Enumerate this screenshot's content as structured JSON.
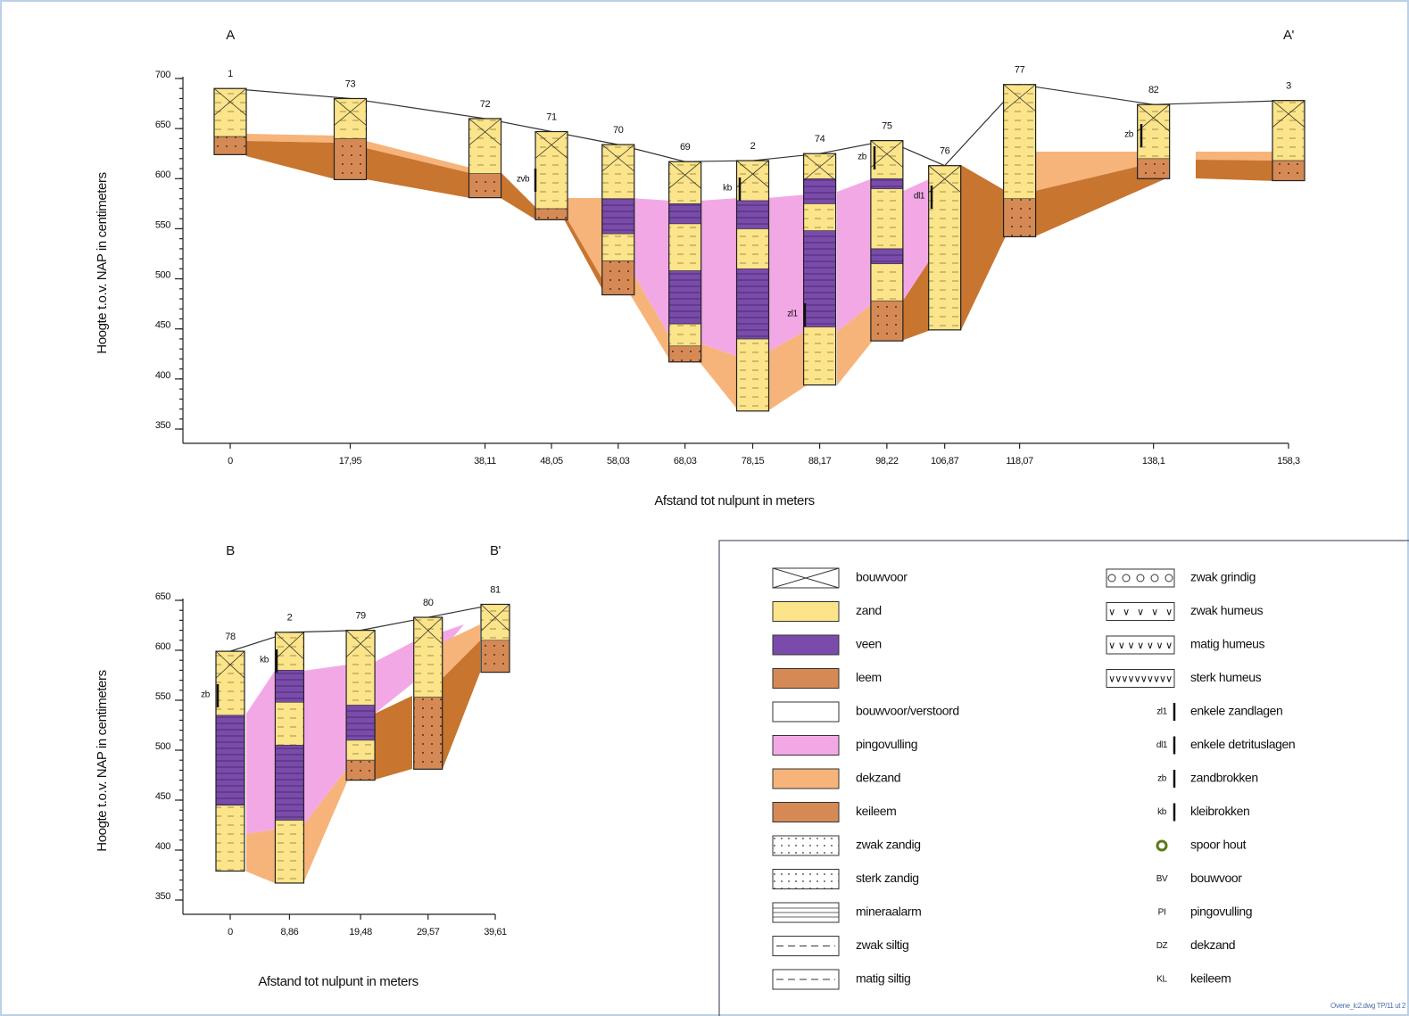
{
  "sections": [
    {
      "title": "A",
      "title_end": "A'",
      "y_label": "Hoogte t.o.v. NAP in centimeters",
      "x_label": "Afstand tot nulpunt in meters",
      "ylim": [
        350,
        700
      ],
      "yticks": [
        350,
        400,
        450,
        500,
        550,
        600,
        650,
        700
      ],
      "xlim": [
        0,
        158.3
      ],
      "xticks": [
        0,
        {
          "value": 17.95,
          "label": "17,95"
        },
        {
          "value": 38.11,
          "label": "38,11"
        },
        {
          "value": 48.05,
          "label": "48,05"
        },
        {
          "value": 58.03,
          "label": "58,03"
        },
        {
          "value": 68.03,
          "label": "68,03"
        },
        {
          "value": 78.15,
          "label": "78,15"
        },
        {
          "value": 88.17,
          "label": "88,17"
        },
        {
          "value": 98.22,
          "label": "98,22"
        },
        {
          "value": 106.87,
          "label": "106,87"
        },
        {
          "value": 118.07,
          "label": "118,07"
        },
        {
          "value": 138.1,
          "label": "138,1"
        },
        {
          "value": 158.3,
          "label": "158,3"
        }
      ],
      "boreholes": [
        {
          "id": "1",
          "top": 690,
          "bottom": 624,
          "layers": {
            "zand": [
              [
                690,
                642
              ]
            ],
            "leem": [
              [
                642,
                624
              ]
            ]
          }
        },
        {
          "id": "73",
          "top": 680,
          "bottom": 599,
          "layers": {
            "zand": [
              [
                680,
                640
              ]
            ],
            "leem": [
              [
                640,
                599
              ]
            ]
          }
        },
        {
          "id": "72",
          "top": 660,
          "bottom": 581,
          "layers": {
            "zand": [
              [
                660,
                605
              ]
            ],
            "leem": [
              [
                605,
                581
              ]
            ]
          }
        },
        {
          "id": "71",
          "top": 647,
          "bottom": 559,
          "layers": {
            "zand": [
              [
                647,
                570
              ]
            ],
            "leem": [
              [
                570,
                559
              ]
            ]
          }
        },
        {
          "id": "70",
          "top": 634,
          "bottom": 484,
          "layers": {
            "zand": [
              [
                634,
                580
              ],
              [
                545,
                518
              ]
            ],
            "veen": [
              [
                580,
                545
              ]
            ],
            "leem": [
              [
                518,
                484
              ]
            ]
          }
        },
        {
          "id": "69",
          "top": 617,
          "bottom": 417,
          "layers": {
            "zand": [
              [
                617,
                575
              ],
              [
                555,
                508
              ],
              [
                455,
                433
              ]
            ],
            "veen": [
              [
                575,
                555
              ],
              [
                508,
                455
              ]
            ],
            "leem": [
              [
                433,
                417
              ]
            ]
          }
        },
        {
          "id": "2",
          "top": 618,
          "bottom": 368,
          "layers": {
            "zand": [
              [
                618,
                578
              ],
              [
                550,
                510
              ],
              [
                440,
                368
              ]
            ],
            "veen": [
              [
                578,
                550
              ],
              [
                510,
                440
              ]
            ]
          }
        },
        {
          "id": "74",
          "top": 625,
          "bottom": 394,
          "layers": {
            "zand": [
              [
                625,
                600
              ],
              [
                575,
                548
              ],
              [
                452,
                394
              ]
            ],
            "veen": [
              [
                600,
                575
              ],
              [
                548,
                452
              ]
            ]
          }
        },
        {
          "id": "75",
          "top": 638,
          "bottom": 438,
          "layers": {
            "zand": [
              [
                638,
                600
              ],
              [
                590,
                530
              ],
              [
                515,
                478
              ]
            ],
            "veen": [
              [
                600,
                590
              ],
              [
                530,
                515
              ]
            ],
            "leem": [
              [
                478,
                438
              ]
            ]
          }
        },
        {
          "id": "76",
          "top": 613,
          "bottom": 449,
          "layers": {
            "zand": [
              [
                613,
                449
              ]
            ]
          }
        },
        {
          "id": "77",
          "top": 694,
          "bottom": 542,
          "layers": {
            "zand": [
              [
                694,
                580
              ]
            ],
            "leem": [
              [
                580,
                542
              ]
            ]
          }
        },
        {
          "id": "82",
          "top": 674,
          "bottom": 600,
          "layers": {
            "zand": [
              [
                674,
                620
              ]
            ],
            "leem": [
              [
                620,
                600
              ]
            ]
          }
        },
        {
          "id": "3",
          "top": 678,
          "bottom": 598,
          "layers": {
            "zand": [
              [
                678,
                618
              ]
            ],
            "leem": [
              [
                618,
                598
              ]
            ]
          }
        }
      ],
      "annotations": [
        "zvb",
        "kb",
        "zb",
        "dl1",
        "zl1",
        "zb"
      ]
    },
    {
      "title": "B",
      "title_end": "B'",
      "y_label": "Hoogte t.o.v. NAP in centimeters",
      "x_label": "Afstand tot nulpunt in meters",
      "ylim": [
        350,
        650
      ],
      "yticks": [
        350,
        400,
        450,
        500,
        550,
        600,
        650
      ],
      "xlim": [
        0,
        39.61
      ],
      "xticks": [
        0,
        {
          "value": 8.86,
          "label": "8,86"
        },
        {
          "value": 19.48,
          "label": "19,48"
        },
        {
          "value": 29.57,
          "label": "29,57"
        },
        {
          "value": 39.61,
          "label": "39,61"
        }
      ],
      "boreholes": [
        {
          "id": "78",
          "top": 599,
          "bottom": 379,
          "layers": {
            "zand": [
              [
                599,
                520
              ],
              [
                445,
                379
              ]
            ],
            "veen": [
              [
                535,
                445
              ]
            ]
          }
        },
        {
          "id": "2",
          "top": 618,
          "bottom": 367,
          "layers": {
            "zand": [
              [
                618,
                580
              ],
              [
                548,
                505
              ],
              [
                430,
                367
              ]
            ],
            "veen": [
              [
                580,
                548
              ],
              [
                505,
                430
              ]
            ]
          }
        },
        {
          "id": "79",
          "top": 620,
          "bottom": 470,
          "layers": {
            "zand": [
              [
                620,
                545
              ],
              [
                510,
                490
              ]
            ],
            "veen": [
              [
                545,
                510
              ]
            ],
            "leem": [
              [
                490,
                470
              ]
            ]
          }
        },
        {
          "id": "80",
          "top": 633,
          "bottom": 481,
          "layers": {
            "zand": [
              [
                633,
                553
              ]
            ],
            "leem": [
              [
                553,
                481
              ]
            ]
          }
        },
        {
          "id": "81",
          "top": 646,
          "bottom": 578,
          "layers": {
            "zand": [
              [
                646,
                610
              ]
            ],
            "leem": [
              [
                610,
                578
              ]
            ]
          }
        }
      ],
      "annotations": [
        "zb",
        "kb"
      ]
    }
  ],
  "legend": {
    "left": [
      "bouwvoor",
      "zand",
      "veen",
      "leem",
      "bouwvoor/verstoord",
      "pingovulling",
      "dekzand",
      "keileem",
      "zwak zandig",
      "sterk zandig",
      "mineraalarm",
      "zwak siltig",
      "matig siltig"
    ],
    "right": [
      {
        "label": "zwak grindig"
      },
      {
        "label": "zwak humeus"
      },
      {
        "label": "matig humeus"
      },
      {
        "label": "sterk humeus"
      },
      {
        "code": "zl1",
        "label": "enkele zandlagen"
      },
      {
        "code": "dl1",
        "label": "enkele detrituslagen"
      },
      {
        "code": "zb",
        "label": "zandbrokken"
      },
      {
        "code": "kb",
        "label": "kleibrokken"
      },
      {
        "label": "spoor hout"
      },
      {
        "code": "BV",
        "label": "bouwvoor"
      },
      {
        "code": "PI",
        "label": "pingovulling"
      },
      {
        "code": "DZ",
        "label": "dekzand"
      },
      {
        "code": "KL",
        "label": "keileem"
      }
    ]
  },
  "footer": "Ovene_lc2.dwg TP/11 ut 2"
}
